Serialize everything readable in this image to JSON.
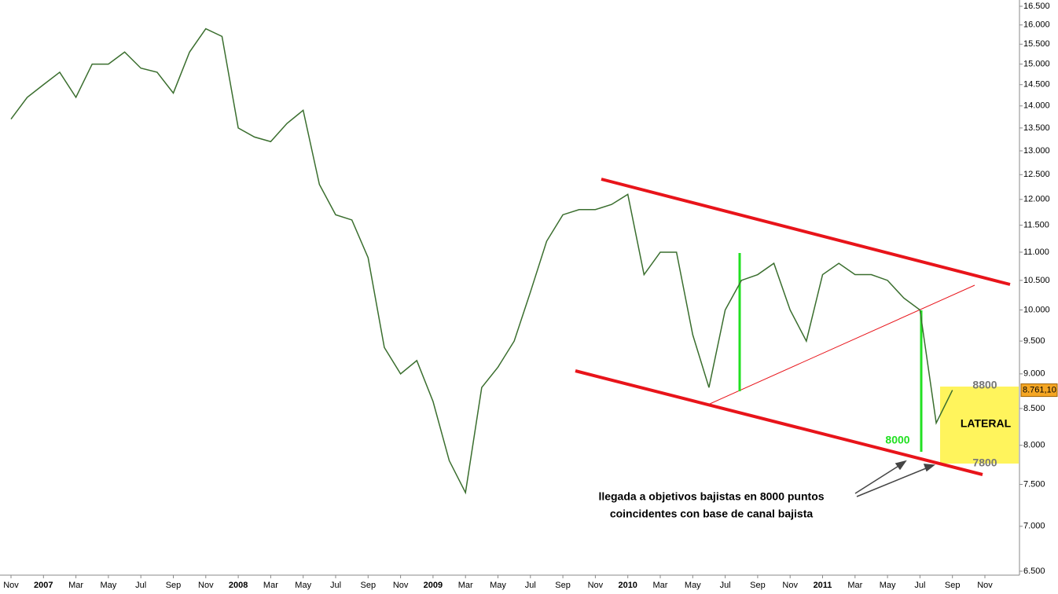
{
  "chart_data": {
    "type": "line",
    "log_scale": true,
    "series": [
      {
        "name": "Index",
        "color": "#3a6e2e",
        "x": [
          "2006-11",
          "2006-12",
          "2007-01",
          "2007-02",
          "2007-03",
          "2007-04",
          "2007-05",
          "2007-06",
          "2007-07",
          "2007-08",
          "2007-09",
          "2007-10",
          "2007-11",
          "2007-12",
          "2008-01",
          "2008-02",
          "2008-03",
          "2008-04",
          "2008-05",
          "2008-06",
          "2008-07",
          "2008-08",
          "2008-09",
          "2008-10",
          "2008-11",
          "2008-12",
          "2009-01",
          "2009-02",
          "2009-03",
          "2009-04",
          "2009-05",
          "2009-06",
          "2009-07",
          "2009-08",
          "2009-09",
          "2009-10",
          "2009-11",
          "2009-12",
          "2010-01",
          "2010-02",
          "2010-03",
          "2010-04",
          "2010-05",
          "2010-06",
          "2010-07",
          "2010-08",
          "2010-09",
          "2010-10",
          "2010-11",
          "2010-12",
          "2011-01",
          "2011-02",
          "2011-03",
          "2011-04",
          "2011-05",
          "2011-06",
          "2011-07",
          "2011-08",
          "2011-09"
        ],
        "values": [
          13700,
          14200,
          14500,
          14800,
          14200,
          15000,
          15000,
          15300,
          14900,
          14800,
          14300,
          15300,
          15900,
          15700,
          13500,
          13300,
          13200,
          13600,
          13900,
          12300,
          11700,
          11600,
          10900,
          9400,
          9000,
          9200,
          8600,
          7800,
          7400,
          8800,
          9100,
          9500,
          10300,
          11200,
          11700,
          11800,
          11800,
          11900,
          12100,
          10600,
          11000,
          11000,
          9600,
          8800,
          10000,
          10500,
          10600,
          10800,
          10000,
          9500,
          10600,
          10800,
          10600,
          10600,
          10500,
          10200,
          10000,
          8300,
          8761.1
        ],
        "value_labels": [
          null,
          null,
          null,
          null,
          null,
          null,
          null,
          null,
          null,
          null,
          null,
          null,
          null,
          null,
          null,
          null,
          null,
          null,
          null,
          null,
          null,
          null,
          null,
          null,
          null,
          null,
          null,
          null,
          null,
          null,
          null,
          null,
          null,
          null,
          null,
          null,
          null,
          null,
          null,
          null,
          null,
          null,
          null,
          null,
          null,
          null,
          null,
          null,
          null,
          null,
          null,
          null,
          null,
          null,
          null,
          null,
          null,
          null,
          "8.761,10"
        ]
      }
    ],
    "ylim": [
      6500,
      16500
    ],
    "yticks": [
      {
        "value": 6500,
        "label": "6.500"
      },
      {
        "value": 7000,
        "label": "7.000"
      },
      {
        "value": 7500,
        "label": "7.500"
      },
      {
        "value": 8000,
        "label": "8.000"
      },
      {
        "value": 8500,
        "label": "8.500"
      },
      {
        "value": 9000,
        "label": "9.000"
      },
      {
        "value": 9500,
        "label": "9.500"
      },
      {
        "value": 10000,
        "label": "10.000"
      },
      {
        "value": 10500,
        "label": "10.500"
      },
      {
        "value": 11000,
        "label": "11.000"
      },
      {
        "value": 11500,
        "label": "11.500"
      },
      {
        "value": 12000,
        "label": "12.000"
      },
      {
        "value": 12500,
        "label": "12.500"
      },
      {
        "value": 13000,
        "label": "13.000"
      },
      {
        "value": 13500,
        "label": "13.500"
      },
      {
        "value": 14000,
        "label": "14.000"
      },
      {
        "value": 14500,
        "label": "14.500"
      },
      {
        "value": 15000,
        "label": "15.000"
      },
      {
        "value": 15500,
        "label": "15.500"
      },
      {
        "value": 16000,
        "label": "16.000"
      },
      {
        "value": 16500,
        "label": "16.500"
      }
    ],
    "xticks": [
      {
        "value": "2006-11",
        "label": "Nov"
      },
      {
        "value": "2007-01",
        "label": "2007"
      },
      {
        "value": "2007-03",
        "label": "Mar"
      },
      {
        "value": "2007-05",
        "label": "May"
      },
      {
        "value": "2007-07",
        "label": "Jul"
      },
      {
        "value": "2007-09",
        "label": "Sep"
      },
      {
        "value": "2007-11",
        "label": "Nov"
      },
      {
        "value": "2008-01",
        "label": "2008"
      },
      {
        "value": "2008-03",
        "label": "Mar"
      },
      {
        "value": "2008-05",
        "label": "May"
      },
      {
        "value": "2008-07",
        "label": "Jul"
      },
      {
        "value": "2008-09",
        "label": "Sep"
      },
      {
        "value": "2008-11",
        "label": "Nov"
      },
      {
        "value": "2009-01",
        "label": "2009"
      },
      {
        "value": "2009-03",
        "label": "Mar"
      },
      {
        "value": "2009-05",
        "label": "May"
      },
      {
        "value": "2009-07",
        "label": "Jul"
      },
      {
        "value": "2009-09",
        "label": "Sep"
      },
      {
        "value": "2009-11",
        "label": "Nov"
      },
      {
        "value": "2010-01",
        "label": "2010"
      },
      {
        "value": "2010-03",
        "label": "Mar"
      },
      {
        "value": "2010-05",
        "label": "May"
      },
      {
        "value": "2010-07",
        "label": "Jul"
      },
      {
        "value": "2010-09",
        "label": "Sep"
      },
      {
        "value": "2010-11",
        "label": "Nov"
      },
      {
        "value": "2011-01",
        "label": "2011"
      },
      {
        "value": "2011-03",
        "label": "Mar"
      },
      {
        "value": "2011-05",
        "label": "May"
      },
      {
        "value": "2011-07",
        "label": "Jul"
      },
      {
        "value": "2011-09",
        "label": "Sep"
      },
      {
        "value": "2011-11",
        "label": "Nov"
      }
    ],
    "annotations": [
      "8800",
      "7800",
      "8000",
      "LATERAL",
      "llegada a objetivos bajistas en 8000 puntos",
      "coincidentes con base de canal bajista"
    ]
  }
}
